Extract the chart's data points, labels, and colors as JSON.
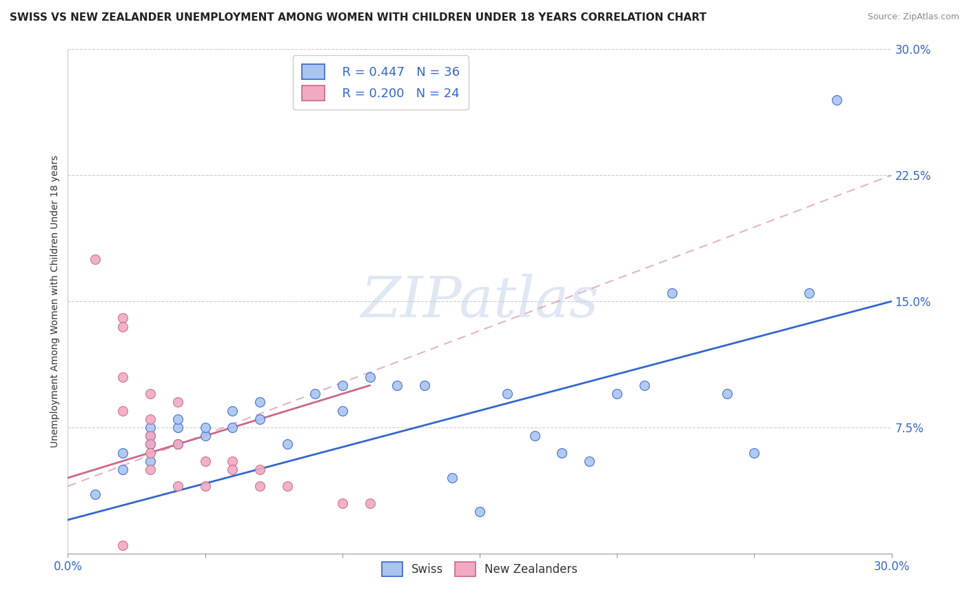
{
  "title": "SWISS VS NEW ZEALANDER UNEMPLOYMENT AMONG WOMEN WITH CHILDREN UNDER 18 YEARS CORRELATION CHART",
  "source": "Source: ZipAtlas.com",
  "ylabel": "Unemployment Among Women with Children Under 18 years",
  "xlabel": "",
  "xlim": [
    0.0,
    0.3
  ],
  "ylim": [
    0.0,
    0.3
  ],
  "ytick_labels": [
    "7.5%",
    "15.0%",
    "22.5%",
    "30.0%"
  ],
  "ytick_vals": [
    0.075,
    0.15,
    0.225,
    0.3
  ],
  "watermark": "ZIPatlas",
  "legend_r_swiss": "R = 0.447",
  "legend_n_swiss": "N = 36",
  "legend_r_nz": "R = 0.200",
  "legend_n_nz": "N = 24",
  "swiss_color": "#aac4f0",
  "nz_color": "#f0aac4",
  "swiss_line_color": "#3366cc",
  "nz_line_color": "#cc6688",
  "swiss_scatter": [
    [
      0.01,
      0.035
    ],
    [
      0.02,
      0.05
    ],
    [
      0.02,
      0.06
    ],
    [
      0.03,
      0.055
    ],
    [
      0.03,
      0.065
    ],
    [
      0.03,
      0.07
    ],
    [
      0.03,
      0.075
    ],
    [
      0.04,
      0.065
    ],
    [
      0.04,
      0.075
    ],
    [
      0.04,
      0.08
    ],
    [
      0.05,
      0.07
    ],
    [
      0.05,
      0.075
    ],
    [
      0.06,
      0.075
    ],
    [
      0.06,
      0.085
    ],
    [
      0.07,
      0.08
    ],
    [
      0.07,
      0.09
    ],
    [
      0.08,
      0.065
    ],
    [
      0.09,
      0.095
    ],
    [
      0.1,
      0.085
    ],
    [
      0.1,
      0.1
    ],
    [
      0.11,
      0.105
    ],
    [
      0.12,
      0.1
    ],
    [
      0.13,
      0.1
    ],
    [
      0.14,
      0.045
    ],
    [
      0.15,
      0.025
    ],
    [
      0.16,
      0.095
    ],
    [
      0.17,
      0.07
    ],
    [
      0.18,
      0.06
    ],
    [
      0.19,
      0.055
    ],
    [
      0.2,
      0.095
    ],
    [
      0.21,
      0.1
    ],
    [
      0.22,
      0.155
    ],
    [
      0.24,
      0.095
    ],
    [
      0.25,
      0.06
    ],
    [
      0.27,
      0.155
    ],
    [
      0.28,
      0.27
    ]
  ],
  "nz_scatter": [
    [
      0.01,
      0.175
    ],
    [
      0.02,
      0.14
    ],
    [
      0.02,
      0.135
    ],
    [
      0.02,
      0.105
    ],
    [
      0.02,
      0.085
    ],
    [
      0.03,
      0.095
    ],
    [
      0.03,
      0.08
    ],
    [
      0.03,
      0.07
    ],
    [
      0.03,
      0.065
    ],
    [
      0.03,
      0.06
    ],
    [
      0.03,
      0.05
    ],
    [
      0.04,
      0.09
    ],
    [
      0.04,
      0.065
    ],
    [
      0.04,
      0.04
    ],
    [
      0.05,
      0.055
    ],
    [
      0.05,
      0.04
    ],
    [
      0.06,
      0.055
    ],
    [
      0.06,
      0.05
    ],
    [
      0.07,
      0.05
    ],
    [
      0.07,
      0.04
    ],
    [
      0.08,
      0.04
    ],
    [
      0.1,
      0.03
    ],
    [
      0.11,
      0.03
    ],
    [
      0.02,
      0.005
    ]
  ],
  "swiss_line": [
    [
      0.0,
      0.02
    ],
    [
      0.3,
      0.15
    ]
  ],
  "nz_line": [
    [
      0.0,
      0.045
    ],
    [
      0.11,
      0.1
    ]
  ],
  "nz_dash_line": [
    [
      0.0,
      0.04
    ],
    [
      0.3,
      0.225
    ]
  ],
  "background_color": "#ffffff",
  "grid_color": "#cccccc"
}
